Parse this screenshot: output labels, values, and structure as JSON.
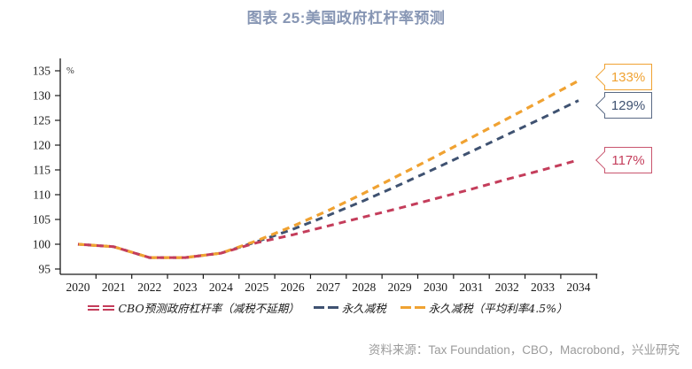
{
  "title": "图表 25:美国政府杠杆率预测",
  "source": "资料来源：Tax Foundation，CBO，Macrobond，兴业研究",
  "colors": {
    "title": "#8796B4",
    "red": "#C43D5B",
    "blue": "#3F5271",
    "orange": "#F0A232",
    "axis": "#1a1a1a",
    "source_text": "#9B9B9B"
  },
  "chart_data": {
    "type": "line",
    "unit_label": "%",
    "x": [
      2020,
      2021,
      2022,
      2023,
      2024,
      2025,
      2026,
      2027,
      2028,
      2029,
      2030,
      2031,
      2032,
      2033,
      2034
    ],
    "series": [
      {
        "name": "CBO预测政府杠杆率（减税不延期）",
        "color_key": "red",
        "style": "dashed",
        "values": [
          100,
          99.5,
          97.3,
          97.3,
          98.2,
          100.3,
          101.9,
          103.7,
          105.5,
          107.3,
          109.2,
          111.1,
          113.1,
          115.0,
          117.0
        ],
        "end_label": "117%"
      },
      {
        "name": "永久减税",
        "color_key": "blue",
        "style": "dashed",
        "values": [
          100,
          99.5,
          97.3,
          97.3,
          98.2,
          100.5,
          103.0,
          105.8,
          108.8,
          112.0,
          115.3,
          118.7,
          122.1,
          125.5,
          129.0
        ],
        "end_label": "129%"
      },
      {
        "name": "永久减税（平均利率4.5%）",
        "color_key": "orange",
        "style": "dashed",
        "values": [
          100,
          99.5,
          97.3,
          97.3,
          98.2,
          100.7,
          103.6,
          106.8,
          110.3,
          114.0,
          117.7,
          121.5,
          125.3,
          129.1,
          133.0
        ],
        "end_label": "133%"
      }
    ],
    "ylim": [
      95,
      135
    ],
    "yticks": [
      95,
      100,
      105,
      110,
      115,
      120,
      125,
      130,
      135
    ],
    "xticks": [
      2020,
      2021,
      2022,
      2023,
      2024,
      2025,
      2026,
      2027,
      2028,
      2029,
      2030,
      2031,
      2032,
      2033,
      2034
    ],
    "grid": false,
    "legend_position": "bottom"
  }
}
